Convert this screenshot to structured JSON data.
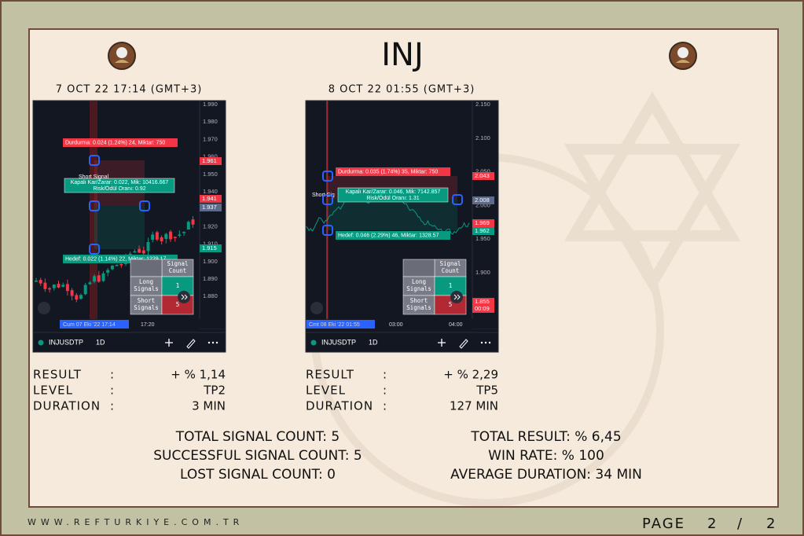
{
  "header": {
    "title": "INJ"
  },
  "panels": [
    {
      "timestamp": "7 OCT 22 17:14 (GMT+3)",
      "screenshot": {
        "price_axis": [
          "1.990",
          "1.980",
          "1.970",
          "1.960",
          "1.950",
          "1.940",
          "1.930",
          "1.920",
          "1.910",
          "1.900",
          "1.890",
          "1.880"
        ],
        "price_tags": [
          "1.961",
          "1.941",
          "1.937",
          "1.915"
        ],
        "stop_label": "Durdurma: 0.024 (1.24%) 24, Miktar: 750",
        "pnl_label": "Kapalı Kar/Zarar: 0.022, Mik: 10416.667",
        "rr_label": "Risk/Ödül Oranı: 0.92",
        "target_label": "Hedef: 0.022 (1.14%) 22, Miktar: 1229.17",
        "signal_label": "Short Signal",
        "table": {
          "header": [
            "Signal",
            "Count"
          ],
          "rows": [
            [
              [
                "Long",
                "Signals"
              ],
              "1"
            ],
            [
              [
                "Short",
                "Signals"
              ],
              "5"
            ]
          ]
        },
        "time_axis": [
          "Cum 07 Eki '22   17:14",
          "17:20"
        ],
        "symbol": "INJUSDTP",
        "interval": "1D"
      },
      "results": [
        [
          "RESULT",
          ":",
          "+ % 1,14"
        ],
        [
          "LEVEL",
          ":",
          "TP2"
        ],
        [
          "DURATION",
          ":",
          "3   MIN"
        ]
      ]
    },
    {
      "timestamp": "8 OCT 22 01:55 (GMT+3)",
      "screenshot": {
        "price_axis": [
          "2.150",
          "2.100",
          "2.050",
          "2.000",
          "1.950",
          "1.900"
        ],
        "price_tags": [
          "2.043",
          "2.008",
          "1.969",
          "1.962",
          "1.855",
          "00:09"
        ],
        "stop_label": "Durdurma: 0.035 (1.74%) 35, Miktar: 750",
        "pnl_label": "Kapalı Kar/Zarar: 0.046, Mik: 7142.857",
        "rr_label": "Risk/Ödül Oranı: 1.31",
        "target_label": "Hedef: 0.046 (2.29%) 46, Miktar: 1328.57",
        "signal_label": "Short Sig",
        "table": {
          "header": [
            "Signal",
            "Count"
          ],
          "rows": [
            [
              [
                "Long",
                "Signals"
              ],
              "1"
            ],
            [
              [
                "Short",
                "Signals"
              ],
              "5"
            ]
          ]
        },
        "time_axis": [
          "Cmt 08 Eki '22   01:55",
          "03:00",
          "04:00"
        ],
        "symbol": "INJUSDTP",
        "interval": "1D"
      },
      "results": [
        [
          "RESULT",
          ":",
          "+ % 2,29"
        ],
        [
          "LEVEL",
          ":",
          "TP5"
        ],
        [
          "DURATION",
          ":",
          "127   MIN"
        ]
      ]
    }
  ],
  "summary": {
    "left": [
      "TOTAL SIGNAL COUNT: 5",
      "SUCCESSFUL SIGNAL COUNT: 5",
      "LOST SIGNAL COUNT: 0"
    ],
    "right": [
      "TOTAL RESULT: % 6,45",
      "WIN RATE: % 100",
      "AVERAGE DURATION: 34 MIN"
    ]
  },
  "footer": {
    "website": "WWW.REFTURKIYE.COM.TR",
    "page_label": "PAGE",
    "page_current": "2",
    "page_separator": "/",
    "page_total": "2"
  }
}
